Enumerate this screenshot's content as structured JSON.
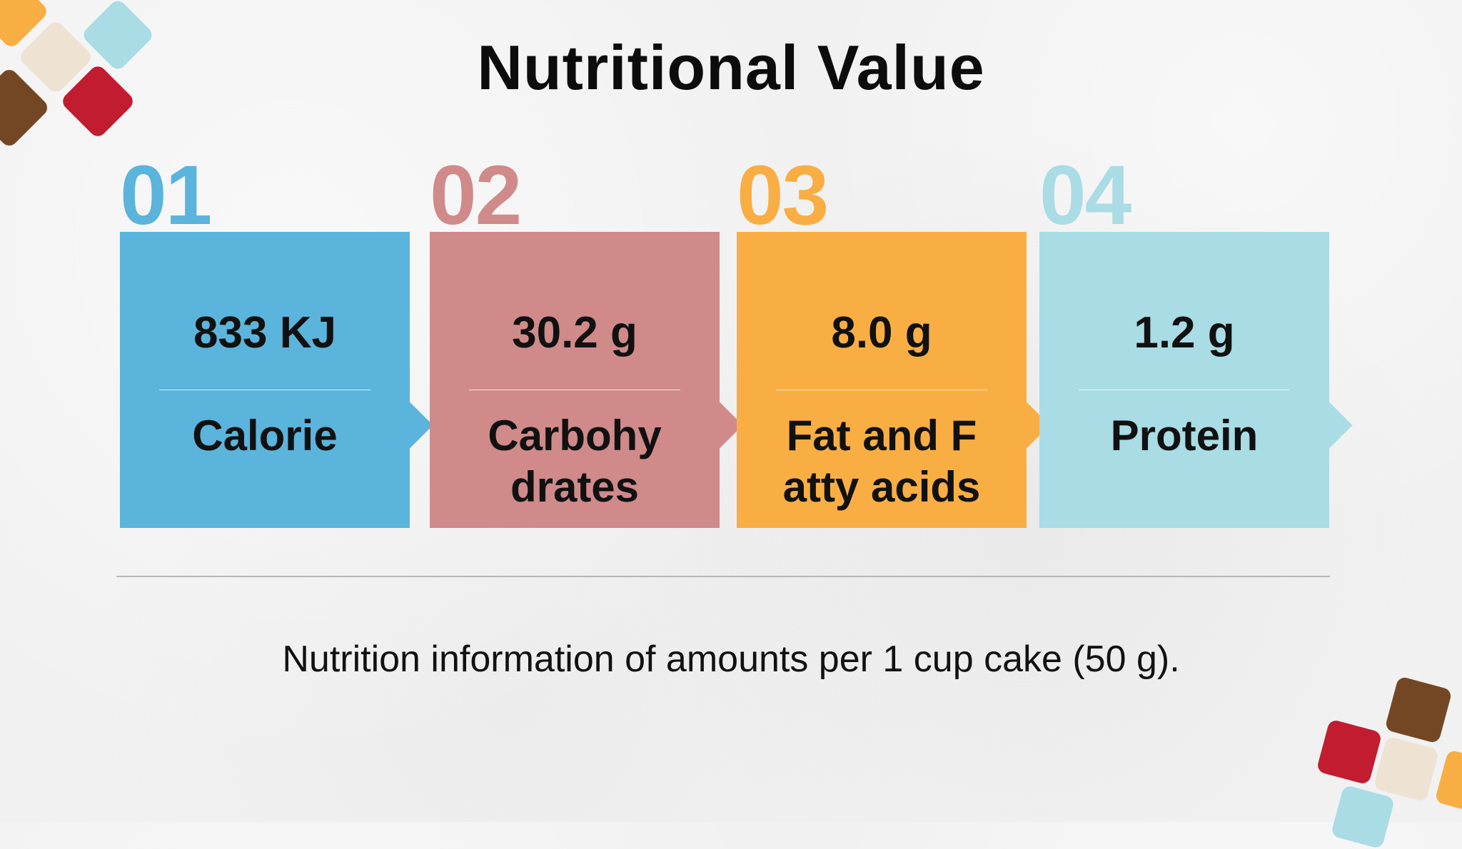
{
  "title": "Nutritional Value",
  "colors": {
    "blue": "#5bb4dc",
    "rose": "#d08a8a",
    "orange": "#f9ae44",
    "lightblue": "#a9dce5",
    "red": "#c21c30",
    "brown": "#744724",
    "cream": "#eee2d3"
  },
  "cards": [
    {
      "number": "01",
      "value": "833 KJ",
      "label": "Calorie",
      "color": "#5bb4dc"
    },
    {
      "number": "02",
      "value": "30.2 g",
      "label": "Carbohy\ndrates",
      "color": "#d08a8a"
    },
    {
      "number": "03",
      "value": "8.0 g",
      "label": "Fat and F\natty acids",
      "color": "#f9ae44"
    },
    {
      "number": "04",
      "value": "1.2 g",
      "label": "Protein",
      "color": "#a9dce5"
    }
  ],
  "note": "Nutrition information of amounts per 1 cup cake (50 g)."
}
